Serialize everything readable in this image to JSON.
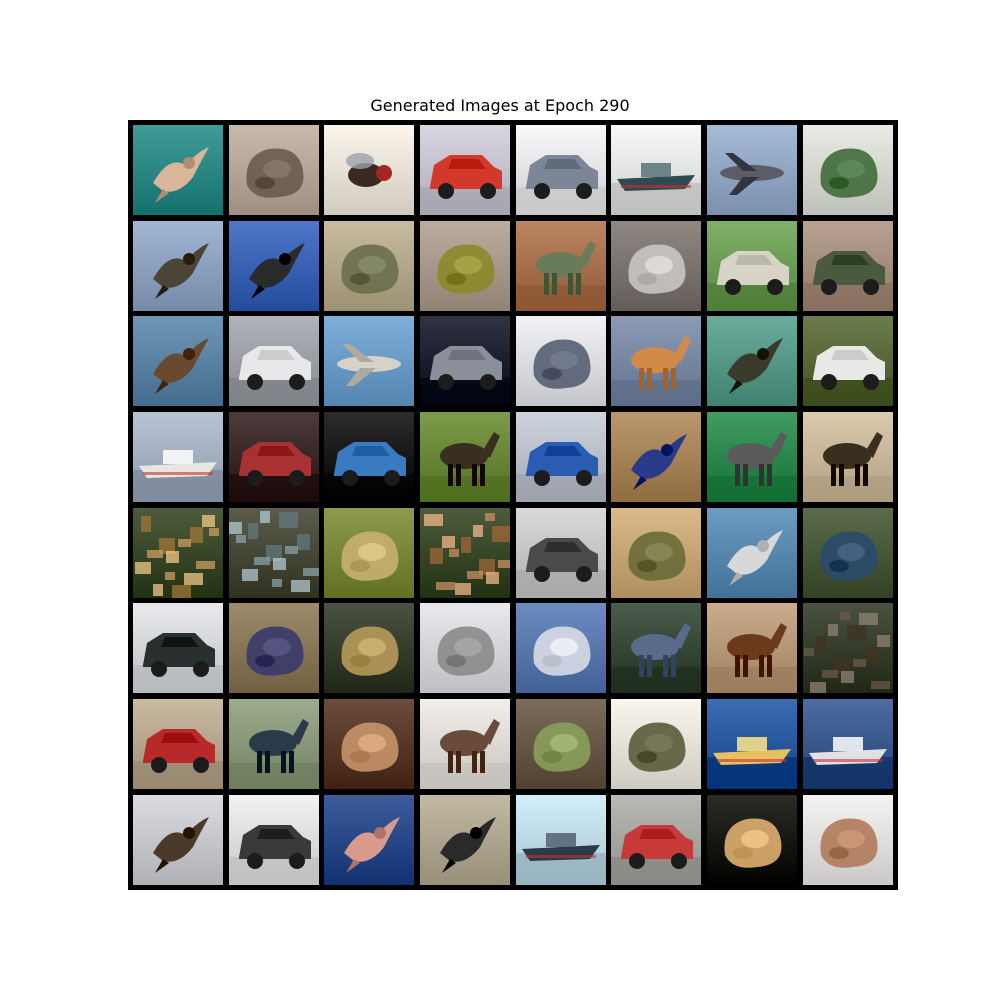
{
  "figure": {
    "title": "Generated Images at Epoch 290"
  },
  "grid": {
    "rows": 8,
    "cols": 8,
    "tiles": [
      {
        "subject": "bird over water",
        "bg": "#2d8a86",
        "fg": "#d9b59a",
        "shape": "bird"
      },
      {
        "subject": "abstract animal",
        "bg": "#b8a89a",
        "fg": "#6b5a4c",
        "shape": "blob"
      },
      {
        "subject": "fly",
        "bg": "#e9e3da",
        "fg": "#3a2a22",
        "shape": "insect"
      },
      {
        "subject": "red truck",
        "bg": "#c7c4cf",
        "fg": "#d4382a",
        "shape": "vehicle"
      },
      {
        "subject": "silver car",
        "bg": "#e7e7ea",
        "fg": "#7c8696",
        "shape": "vehicle"
      },
      {
        "subject": "boat",
        "bg": "#e6e8e6",
        "fg": "#2f4a50",
        "shape": "boat"
      },
      {
        "subject": "airplane",
        "bg": "#93a9c7",
        "fg": "#5b5d66",
        "shape": "plane"
      },
      {
        "subject": "white animal",
        "bg": "#d7d9d3",
        "fg": "#3f6b3a",
        "shape": "blob"
      },
      {
        "subject": "bird",
        "bg": "#8fa3c2",
        "fg": "#4c4434",
        "shape": "bird"
      },
      {
        "subject": "bird in sky",
        "bg": "#3c64b7",
        "fg": "#2b2a2a",
        "shape": "bird"
      },
      {
        "subject": "deer",
        "bg": "#b5ab8c",
        "fg": "#6a6e4e",
        "shape": "blob"
      },
      {
        "subject": "frog",
        "bg": "#a99c8c",
        "fg": "#8a8a2a",
        "shape": "blob"
      },
      {
        "subject": "horse",
        "bg": "#a9734f",
        "fg": "#6a7b5a",
        "shape": "animal"
      },
      {
        "subject": "gray animal",
        "bg": "#7d7671",
        "fg": "#c9c6c2",
        "shape": "blob"
      },
      {
        "subject": "car",
        "bg": "#6e9f57",
        "fg": "#d7d3c7",
        "shape": "vehicle"
      },
      {
        "subject": "truck",
        "bg": "#a89080",
        "fg": "#4a5a3f",
        "shape": "vehicle"
      },
      {
        "subject": "bird",
        "bg": "#5d85a6",
        "fg": "#6a4a2e",
        "shape": "bird"
      },
      {
        "subject": "white car",
        "bg": "#9ea2a8",
        "fg": "#e8e8ea",
        "shape": "vehicle"
      },
      {
        "subject": "airplane",
        "bg": "#6c9ec9",
        "fg": "#d6d2c8",
        "shape": "plane"
      },
      {
        "subject": "dark car",
        "bg": "#1e2230",
        "fg": "#8a8f9a",
        "shape": "vehicle"
      },
      {
        "subject": "dog",
        "bg": "#dfe0e4",
        "fg": "#555e72",
        "shape": "blob"
      },
      {
        "subject": "deer",
        "bg": "#7a8aa5",
        "fg": "#d08a4a",
        "shape": "animal"
      },
      {
        "subject": "bird",
        "bg": "#5a9a8a",
        "fg": "#3a3a2a",
        "shape": "bird"
      },
      {
        "subject": "white car",
        "bg": "#5a6a3a",
        "fg": "#e8e8e6",
        "shape": "vehicle"
      },
      {
        "subject": "ship",
        "bg": "#a7b1c4",
        "fg": "#e8e6e2",
        "shape": "boat"
      },
      {
        "subject": "red car",
        "bg": "#3c2a2a",
        "fg": "#a83232",
        "shape": "vehicle"
      },
      {
        "subject": "blue truck",
        "bg": "#1a1a1a",
        "fg": "#3a7ac0",
        "shape": "vehicle"
      },
      {
        "subject": "horse on grass",
        "bg": "#6a8a3a",
        "fg": "#3a2e1e",
        "shape": "animal"
      },
      {
        "subject": "blue car",
        "bg": "#bcc2cc",
        "fg": "#2a5cb4",
        "shape": "vehicle"
      },
      {
        "subject": "bird",
        "bg": "#a8865a",
        "fg": "#2a3a8a",
        "shape": "bird"
      },
      {
        "subject": "horse",
        "bg": "#2e8a4e",
        "fg": "#5a5a5a",
        "shape": "animal"
      },
      {
        "subject": "horse",
        "bg": "#c9b99a",
        "fg": "#3a2e1e",
        "shape": "animal"
      },
      {
        "subject": "colorful clutter",
        "bg": "#3a4a2a",
        "fg": "#c8a060",
        "shape": "noise"
      },
      {
        "subject": "colorful clutter",
        "bg": "#4a4a3a",
        "fg": "#8aa0a8",
        "shape": "noise"
      },
      {
        "subject": "frog",
        "bg": "#7a8a3a",
        "fg": "#c8b070",
        "shape": "blob"
      },
      {
        "subject": "colorful clutter",
        "bg": "#3a4a2a",
        "fg": "#c89060",
        "shape": "noise"
      },
      {
        "subject": "white car",
        "bg": "#c8c8c8",
        "fg": "#4a4a4a",
        "shape": "vehicle"
      },
      {
        "subject": "frog",
        "bg": "#c8a878",
        "fg": "#6a6a3a",
        "shape": "blob"
      },
      {
        "subject": "bird",
        "bg": "#5a8ab0",
        "fg": "#d8d8d8",
        "shape": "bird"
      },
      {
        "subject": "frog",
        "bg": "#4a5a3a",
        "fg": "#2a4a6a",
        "shape": "blob"
      },
      {
        "subject": "truck",
        "bg": "#d6d8dc",
        "fg": "#2a3030",
        "shape": "vehicle"
      },
      {
        "subject": "cat",
        "bg": "#8a7a5a",
        "fg": "#3a3a6a",
        "shape": "blob"
      },
      {
        "subject": "frog",
        "bg": "#3a4030",
        "fg": "#b89a5a",
        "shape": "blob"
      },
      {
        "subject": "cat",
        "bg": "#d8d8dc",
        "fg": "#8a8a8a",
        "shape": "blob"
      },
      {
        "subject": "dog",
        "bg": "#5a7ab0",
        "fg": "#d8dce4",
        "shape": "blob"
      },
      {
        "subject": "horse in forest",
        "bg": "#3a4a3a",
        "fg": "#5a6a8a",
        "shape": "animal"
      },
      {
        "subject": "horse",
        "bg": "#b89a7a",
        "fg": "#6a3a1a",
        "shape": "animal"
      },
      {
        "subject": "forest",
        "bg": "#3a4030",
        "fg": "#6a5a4a",
        "shape": "noise"
      },
      {
        "subject": "red truck",
        "bg": "#b8a890",
        "fg": "#b82a2a",
        "shape": "vehicle"
      },
      {
        "subject": "horse",
        "bg": "#8a9a7a",
        "fg": "#2a3a4a",
        "shape": "animal"
      },
      {
        "subject": "dog",
        "bg": "#5a3a2a",
        "fg": "#c8946a",
        "shape": "blob"
      },
      {
        "subject": "deer",
        "bg": "#e0dcd8",
        "fg": "#6a4a3a",
        "shape": "animal"
      },
      {
        "subject": "frog",
        "bg": "#6a5a4a",
        "fg": "#8aa05a",
        "shape": "blob"
      },
      {
        "subject": "frog",
        "bg": "#e8e4dc",
        "fg": "#5a5a3a",
        "shape": "blob"
      },
      {
        "subject": "ship",
        "bg": "#2a5aa0",
        "fg": "#e8c060",
        "shape": "boat"
      },
      {
        "subject": "ship",
        "bg": "#3a5a90",
        "fg": "#e0e0e4",
        "shape": "boat"
      },
      {
        "subject": "bird",
        "bg": "#c8cad0",
        "fg": "#4a3a2a",
        "shape": "bird"
      },
      {
        "subject": "truck",
        "bg": "#e0e0e0",
        "fg": "#3a3a3a",
        "shape": "vehicle"
      },
      {
        "subject": "bird in sky",
        "bg": "#2a4a8a",
        "fg": "#d89a8a",
        "shape": "bird"
      },
      {
        "subject": "bird",
        "bg": "#b0a890",
        "fg": "#2a2a2a",
        "shape": "bird"
      },
      {
        "subject": "ship",
        "bg": "#c0dce8",
        "fg": "#2a3a4a",
        "shape": "boat"
      },
      {
        "subject": "red car",
        "bg": "#a8a8a4",
        "fg": "#c83a3a",
        "shape": "vehicle"
      },
      {
        "subject": "dog",
        "bg": "#1a1a14",
        "fg": "#e0b070",
        "shape": "blob"
      },
      {
        "subject": "cat",
        "bg": "#e4e2e0",
        "fg": "#b07a5a",
        "shape": "blob"
      }
    ]
  }
}
